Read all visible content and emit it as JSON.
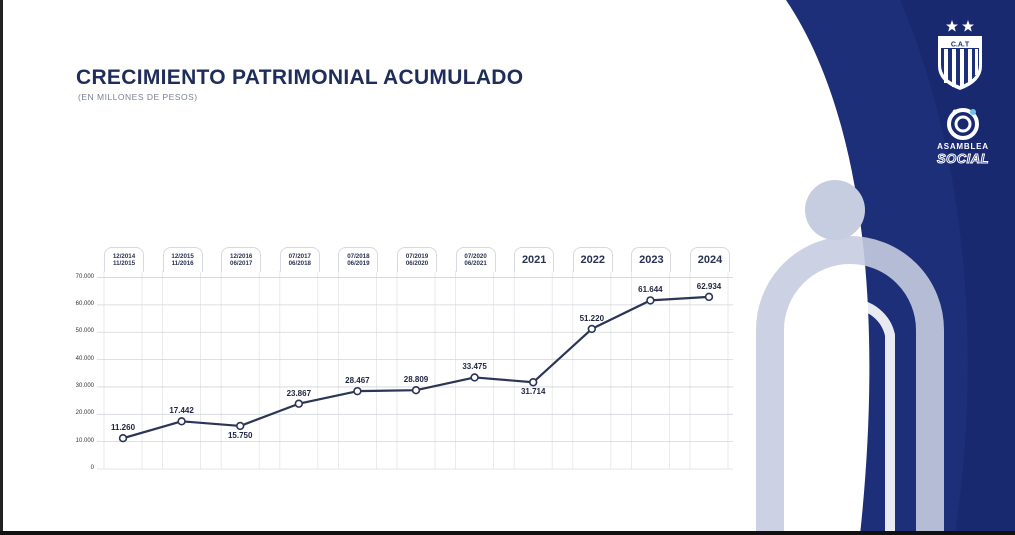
{
  "title": "CRECIMIENTO PATRIMONIAL ACUMULADO",
  "subtitle": "(EN MILLONES DE PESOS)",
  "brand": {
    "club_abbrev": "C.A.T",
    "assembly_line1": "ASAMBLEA",
    "assembly_line2": "SOCIAL",
    "navy": "#1d2f78",
    "dark_navy": "#12205a",
    "light_circle": "#c7cde0"
  },
  "chart_data": {
    "type": "line",
    "categories": [
      [
        "12/2014",
        "11/2015"
      ],
      [
        "12/2015",
        "11/2016"
      ],
      [
        "12/2016",
        "06/2017"
      ],
      [
        "07/2017",
        "06/2018"
      ],
      [
        "07/2018",
        "06/2019"
      ],
      [
        "07/2019",
        "06/2020"
      ],
      [
        "07/2020",
        "06/2021"
      ],
      [
        "2021"
      ],
      [
        "2022"
      ],
      [
        "2023"
      ],
      [
        "2024"
      ]
    ],
    "values": [
      11260,
      17442,
      15750,
      23867,
      28467,
      28809,
      33475,
      31714,
      51220,
      61644,
      62934
    ],
    "value_labels": [
      "11.260",
      "17.442",
      "15.750",
      "23.867",
      "28.467",
      "28.809",
      "33.475",
      "31.714",
      "51.220",
      "61.644",
      "62.934"
    ],
    "label_position": [
      "above",
      "above",
      "below",
      "above",
      "above",
      "above",
      "above",
      "below",
      "above",
      "above",
      "above"
    ],
    "yticks": [
      0,
      10000,
      20000,
      30000,
      40000,
      50000,
      60000,
      70000
    ],
    "ytick_labels": [
      "0",
      "10.000",
      "20.000",
      "30.000",
      "40.000",
      "50.000",
      "60.000",
      "70.000"
    ],
    "ylim": [
      0,
      70000
    ],
    "grid": true,
    "line_color": "#2b3556"
  }
}
